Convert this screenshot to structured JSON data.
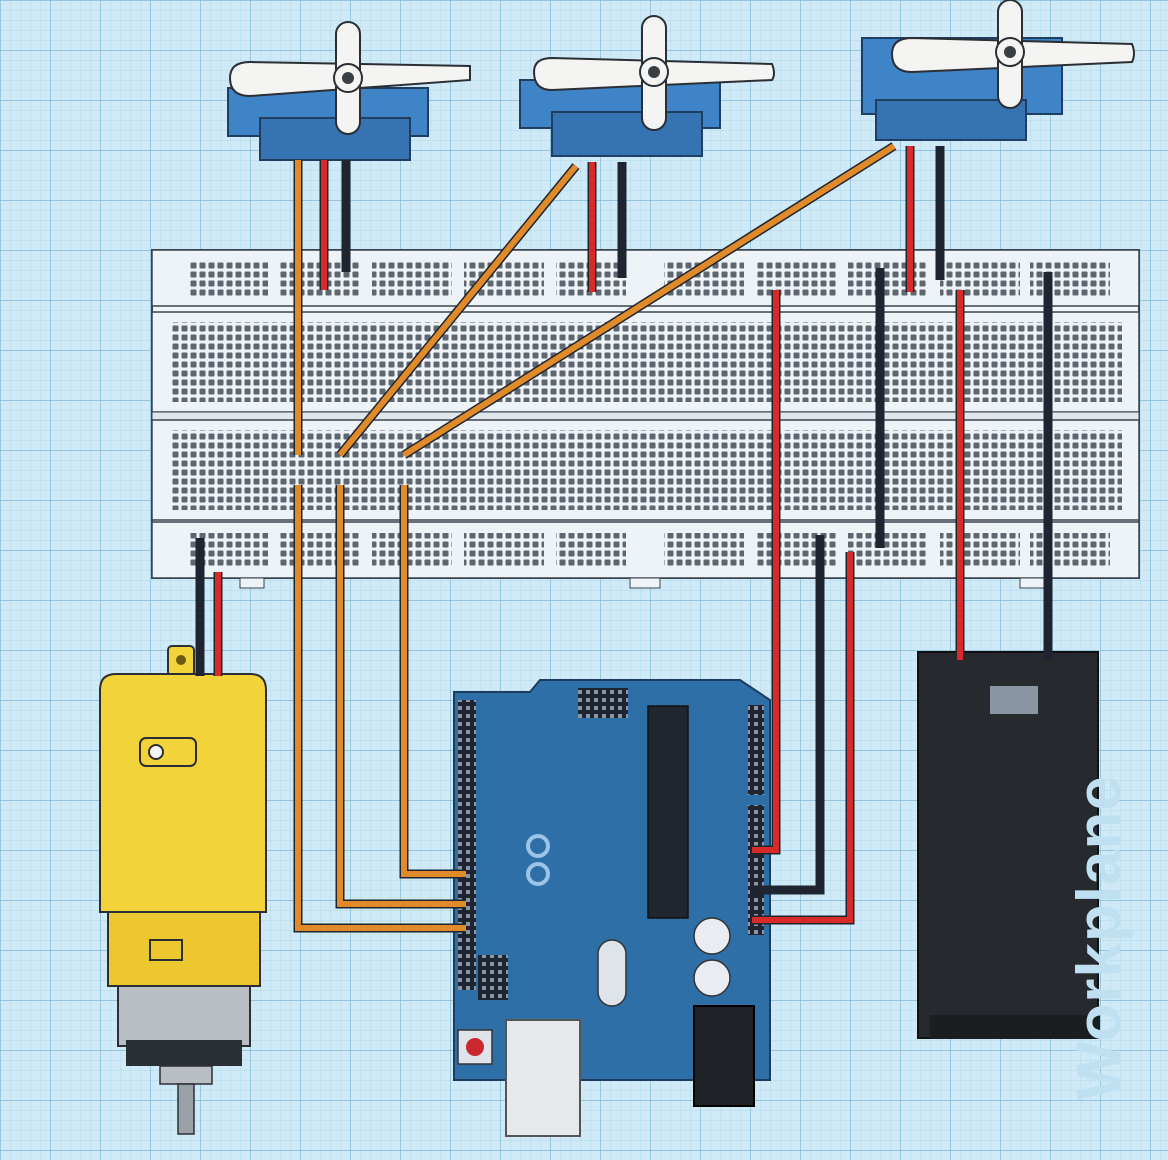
{
  "workplane": {
    "label": "Workplane"
  },
  "colors": {
    "grid_bg": "#cfeaf6",
    "grid_minor": "#a9d3e8",
    "grid_major": "#7fb9d6",
    "wire_signal": "#e08a2a",
    "wire_power": "#d92a2a",
    "wire_ground": "#1e2530",
    "servo_blue": "#3f84c6",
    "arduino_blue": "#2f6fa8",
    "motor_yellow": "#f2d33a",
    "battery_black": "#262a2e",
    "breadboard": "#eef3f7"
  },
  "components": [
    {
      "name": "servo-1",
      "kind": "micro servo"
    },
    {
      "name": "servo-2",
      "kind": "micro servo"
    },
    {
      "name": "servo-3",
      "kind": "micro servo"
    },
    {
      "name": "breadboard",
      "kind": "full-size breadboard"
    },
    {
      "name": "dc-gear-motor",
      "kind": "yellow DC gear motor"
    },
    {
      "name": "arduino-uno",
      "kind": "Arduino Uno board"
    },
    {
      "name": "battery-pack",
      "kind": "9V battery pack"
    }
  ]
}
